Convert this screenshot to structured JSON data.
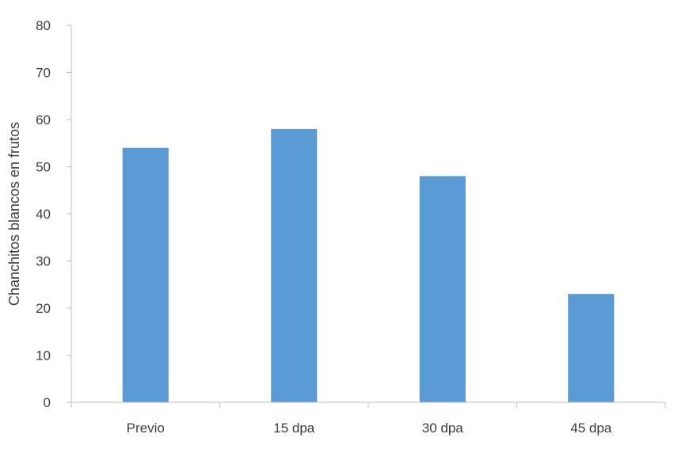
{
  "chart_data": {
    "type": "bar",
    "title": "",
    "xlabel": "",
    "ylabel": "Chanchitos blancos en frutos",
    "categories": [
      "Previo",
      "15 dpa",
      "30 dpa",
      "45 dpa"
    ],
    "values": [
      54,
      58,
      48,
      23
    ],
    "ylim": [
      0,
      80
    ],
    "yticks": [
      0,
      10,
      20,
      30,
      40,
      50,
      60,
      70,
      80
    ],
    "grid": false,
    "legend": "none",
    "colors": {
      "bar": "#5b9bd5",
      "axis": "#bfbfbf",
      "text": "#404040"
    }
  }
}
